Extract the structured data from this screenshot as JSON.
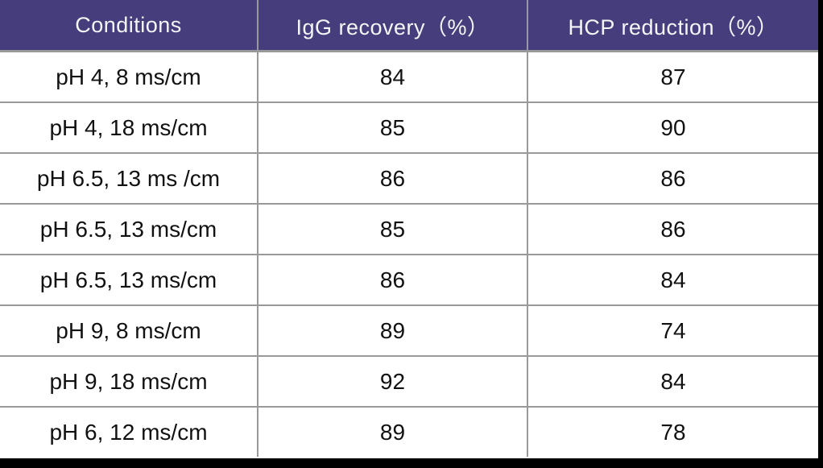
{
  "table": {
    "headers": [
      "Conditions",
      "IgG recovery（%）",
      "HCP reduction（%）"
    ],
    "rows": [
      [
        "pH 4, 8 ms/cm",
        "84",
        "87"
      ],
      [
        "pH 4, 18 ms/cm",
        "85",
        "90"
      ],
      [
        "pH 6.5, 13 ms /cm",
        "86",
        "86"
      ],
      [
        "pH 6.5, 13 ms/cm",
        "85",
        "86"
      ],
      [
        "pH 6.5, 13 ms/cm",
        "86",
        "84"
      ],
      [
        "pH 9, 8 ms/cm",
        "89",
        "74"
      ],
      [
        "pH 9, 18 ms/cm",
        "92",
        "84"
      ],
      [
        "pH 6, 12 ms/cm",
        "89",
        "78"
      ]
    ]
  },
  "chart_data": {
    "type": "table",
    "title": "",
    "columns": [
      "Conditions",
      "IgG recovery（%）",
      "HCP reduction（%）"
    ],
    "rows": [
      {
        "condition": "pH 4, 8 ms/cm",
        "igg_recovery_pct": 84,
        "hcp_reduction_pct": 87
      },
      {
        "condition": "pH 4, 18 ms/cm",
        "igg_recovery_pct": 85,
        "hcp_reduction_pct": 90
      },
      {
        "condition": "pH 6.5, 13 ms /cm",
        "igg_recovery_pct": 86,
        "hcp_reduction_pct": 86
      },
      {
        "condition": "pH 6.5, 13 ms/cm",
        "igg_recovery_pct": 85,
        "hcp_reduction_pct": 86
      },
      {
        "condition": "pH 6.5, 13 ms/cm",
        "igg_recovery_pct": 86,
        "hcp_reduction_pct": 84
      },
      {
        "condition": "pH 9, 8 ms/cm",
        "igg_recovery_pct": 89,
        "hcp_reduction_pct": 74
      },
      {
        "condition": "pH 9, 18 ms/cm",
        "igg_recovery_pct": 92,
        "hcp_reduction_pct": 84
      },
      {
        "condition": "pH 6, 12 ms/cm",
        "igg_recovery_pct": 89,
        "hcp_reduction_pct": 78
      }
    ]
  },
  "colors": {
    "header_bg": "#463D7D",
    "header_text": "#F5F5F5",
    "grid_line": "#999999",
    "body_text": "#111111",
    "edge_bars": "#000000",
    "row_bg": "#FFFFFF"
  }
}
